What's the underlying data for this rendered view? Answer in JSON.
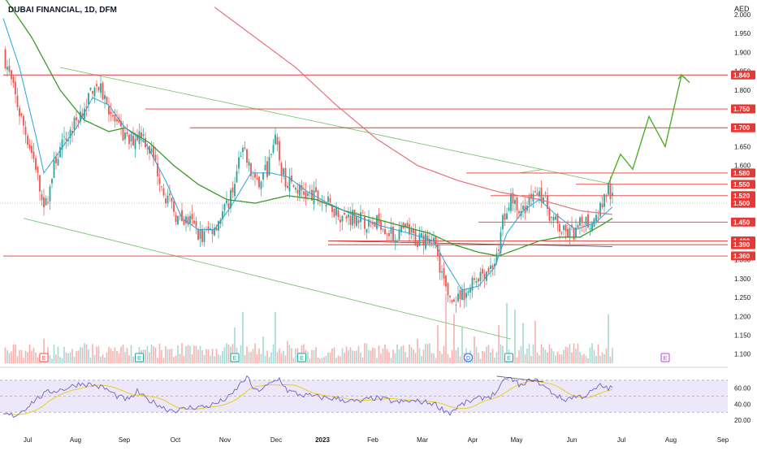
{
  "header": {
    "title": "DUBAI FINANCIAL, 1D, DFM",
    "currency": "AED"
  },
  "colors": {
    "up": "#26a69a",
    "down": "#ef5350",
    "ma_fast": "#2aa3d8",
    "ma_mid": "#3a9a2a",
    "ma_slow": "#e8707a",
    "level": "#e53935",
    "trend": "#7cc576",
    "projection": "#4caf28",
    "rsi": "#6c5fc7",
    "rsi_signal": "#e6d020",
    "rsi_band": "#ede7fa"
  },
  "chart_data": {
    "type": "candlestick",
    "title": "DUBAI FINANCIAL, 1D, DFM",
    "y_unit": "AED",
    "ylim": [
      1.08,
      2.0
    ],
    "y_ticks": [
      "2.000",
      "1.950",
      "1.900",
      "1.850",
      "1.800",
      "1.750",
      "1.700",
      "1.650",
      "1.600",
      "1.550",
      "1.500",
      "1.450",
      "1.400",
      "1.350",
      "1.300",
      "1.250",
      "1.200",
      "1.150",
      "1.100"
    ],
    "x_ticks": [
      "Jul",
      "Aug",
      "Sep",
      "Oct",
      "Nov",
      "Dec",
      "2023",
      "Feb",
      "Mar",
      "Apr",
      "May",
      "Jun",
      "Jul",
      "Aug",
      "Sep"
    ],
    "levels": [
      {
        "value": 1.84,
        "label": "1.840"
      },
      {
        "value": 1.75,
        "label": "1.750"
      },
      {
        "value": 1.7,
        "label": "1.700"
      },
      {
        "value": 1.58,
        "label": "1.580"
      },
      {
        "value": 1.55,
        "label": "1.550"
      },
      {
        "value": 1.52,
        "label": "1.520"
      },
      {
        "value": 1.45,
        "label": "1.450"
      },
      {
        "value": 1.4,
        "label": "1.400"
      },
      {
        "value": 1.39,
        "label": "1.390"
      },
      {
        "value": 1.36,
        "label": "1.360"
      }
    ],
    "last_price": {
      "value": 1.5,
      "label": "1.500"
    },
    "close_anchors": [
      [
        0,
        1.9
      ],
      [
        8,
        1.74
      ],
      [
        16,
        1.6
      ],
      [
        20,
        1.47
      ],
      [
        26,
        1.62
      ],
      [
        34,
        1.7
      ],
      [
        40,
        1.76
      ],
      [
        45,
        1.82
      ],
      [
        50,
        1.78
      ],
      [
        56,
        1.7
      ],
      [
        62,
        1.66
      ],
      [
        68,
        1.69
      ],
      [
        74,
        1.62
      ],
      [
        80,
        1.52
      ],
      [
        86,
        1.46
      ],
      [
        92,
        1.45
      ],
      [
        98,
        1.41
      ],
      [
        104,
        1.44
      ],
      [
        110,
        1.49
      ],
      [
        114,
        1.56
      ],
      [
        118,
        1.64
      ],
      [
        124,
        1.55
      ],
      [
        130,
        1.59
      ],
      [
        134,
        1.66
      ],
      [
        138,
        1.57
      ],
      [
        144,
        1.54
      ],
      [
        150,
        1.52
      ],
      [
        156,
        1.51
      ],
      [
        162,
        1.49
      ],
      [
        168,
        1.46
      ],
      [
        174,
        1.47
      ],
      [
        180,
        1.44
      ],
      [
        186,
        1.45
      ],
      [
        192,
        1.41
      ],
      [
        198,
        1.43
      ],
      [
        204,
        1.4
      ],
      [
        210,
        1.42
      ],
      [
        214,
        1.36
      ],
      [
        218,
        1.27
      ],
      [
        222,
        1.23
      ],
      [
        228,
        1.26
      ],
      [
        234,
        1.31
      ],
      [
        240,
        1.33
      ],
      [
        244,
        1.36
      ],
      [
        246,
        1.46
      ],
      [
        250,
        1.52
      ],
      [
        254,
        1.46
      ],
      [
        258,
        1.5
      ],
      [
        262,
        1.55
      ],
      [
        266,
        1.52
      ],
      [
        270,
        1.46
      ],
      [
        276,
        1.42
      ],
      [
        282,
        1.42
      ],
      [
        286,
        1.46
      ],
      [
        290,
        1.44
      ],
      [
        294,
        1.49
      ],
      [
        298,
        1.54
      ],
      [
        300,
        1.51
      ]
    ],
    "ma_anchors": {
      "ma_fast": [
        [
          0,
          1.99
        ],
        [
          8,
          1.86
        ],
        [
          16,
          1.68
        ],
        [
          20,
          1.58
        ],
        [
          28,
          1.64
        ],
        [
          36,
          1.7
        ],
        [
          44,
          1.78
        ],
        [
          52,
          1.76
        ],
        [
          60,
          1.7
        ],
        [
          70,
          1.66
        ],
        [
          80,
          1.56
        ],
        [
          88,
          1.46
        ],
        [
          96,
          1.43
        ],
        [
          104,
          1.43
        ],
        [
          112,
          1.49
        ],
        [
          122,
          1.58
        ],
        [
          132,
          1.58
        ],
        [
          140,
          1.57
        ],
        [
          150,
          1.53
        ],
        [
          160,
          1.5
        ],
        [
          172,
          1.47
        ],
        [
          186,
          1.44
        ],
        [
          200,
          1.42
        ],
        [
          212,
          1.4
        ],
        [
          218,
          1.34
        ],
        [
          226,
          1.27
        ],
        [
          234,
          1.28
        ],
        [
          242,
          1.33
        ],
        [
          248,
          1.42
        ],
        [
          256,
          1.48
        ],
        [
          264,
          1.51
        ],
        [
          272,
          1.47
        ],
        [
          282,
          1.43
        ],
        [
          292,
          1.45
        ],
        [
          300,
          1.49
        ]
      ],
      "ma_mid": [
        [
          0,
          2.05
        ],
        [
          14,
          1.94
        ],
        [
          28,
          1.8
        ],
        [
          40,
          1.72
        ],
        [
          52,
          1.69
        ],
        [
          60,
          1.7
        ],
        [
          72,
          1.66
        ],
        [
          84,
          1.6
        ],
        [
          96,
          1.55
        ],
        [
          110,
          1.51
        ],
        [
          124,
          1.5
        ],
        [
          140,
          1.52
        ],
        [
          154,
          1.51
        ],
        [
          168,
          1.48
        ],
        [
          182,
          1.46
        ],
        [
          196,
          1.44
        ],
        [
          210,
          1.42
        ],
        [
          222,
          1.39
        ],
        [
          234,
          1.37
        ],
        [
          244,
          1.36
        ],
        [
          254,
          1.38
        ],
        [
          264,
          1.4
        ],
        [
          274,
          1.41
        ],
        [
          284,
          1.41
        ],
        [
          294,
          1.44
        ],
        [
          300,
          1.46
        ]
      ],
      "ma_slow": [
        [
          104,
          2.02
        ],
        [
          124,
          1.94
        ],
        [
          144,
          1.86
        ],
        [
          164,
          1.76
        ],
        [
          184,
          1.67
        ],
        [
          204,
          1.6
        ],
        [
          224,
          1.56
        ],
        [
          244,
          1.53
        ],
        [
          264,
          1.51
        ],
        [
          284,
          1.48
        ],
        [
          300,
          1.47
        ]
      ]
    },
    "volume_spikes": [
      [
        20,
        0.55
      ],
      [
        40,
        0.45
      ],
      [
        86,
        0.4
      ],
      [
        114,
        0.8
      ],
      [
        118,
        1.15
      ],
      [
        128,
        0.6
      ],
      [
        134,
        1.15
      ],
      [
        140,
        0.5
      ],
      [
        178,
        0.45
      ],
      [
        204,
        0.55
      ],
      [
        214,
        0.85
      ],
      [
        218,
        1.55
      ],
      [
        222,
        1.1
      ],
      [
        226,
        0.8
      ],
      [
        232,
        0.6
      ],
      [
        244,
        0.85
      ],
      [
        248,
        1.35
      ],
      [
        252,
        1.2
      ],
      [
        256,
        0.9
      ],
      [
        262,
        0.95
      ],
      [
        290,
        0.45
      ],
      [
        298,
        1.1
      ]
    ],
    "rsi": {
      "ylim": [
        15,
        80
      ],
      "y_ticks": [
        "60.00",
        "40.00",
        "20.00"
      ],
      "levels": [
        70,
        50,
        30
      ],
      "anchors": [
        [
          0,
          27
        ],
        [
          6,
          26
        ],
        [
          10,
          33
        ],
        [
          16,
          46
        ],
        [
          22,
          55
        ],
        [
          30,
          59
        ],
        [
          38,
          66
        ],
        [
          44,
          64
        ],
        [
          50,
          60
        ],
        [
          56,
          50
        ],
        [
          62,
          45
        ],
        [
          66,
          56
        ],
        [
          70,
          47
        ],
        [
          76,
          40
        ],
        [
          80,
          34
        ],
        [
          86,
          32
        ],
        [
          92,
          36
        ],
        [
          100,
          37
        ],
        [
          106,
          42
        ],
        [
          112,
          50
        ],
        [
          116,
          63
        ],
        [
          120,
          74
        ],
        [
          124,
          56
        ],
        [
          128,
          60
        ],
        [
          132,
          66
        ],
        [
          136,
          72
        ],
        [
          140,
          57
        ],
        [
          146,
          52
        ],
        [
          152,
          50
        ],
        [
          158,
          48
        ],
        [
          164,
          47
        ],
        [
          170,
          44
        ],
        [
          176,
          43
        ],
        [
          182,
          48
        ],
        [
          188,
          46
        ],
        [
          194,
          42
        ],
        [
          200,
          44
        ],
        [
          206,
          43
        ],
        [
          212,
          41
        ],
        [
          216,
          34
        ],
        [
          220,
          29
        ],
        [
          224,
          37
        ],
        [
          228,
          42
        ],
        [
          234,
          47
        ],
        [
          240,
          50
        ],
        [
          244,
          58
        ],
        [
          248,
          74
        ],
        [
          252,
          68
        ],
        [
          256,
          62
        ],
        [
          260,
          72
        ],
        [
          264,
          67
        ],
        [
          270,
          55
        ],
        [
          276,
          45
        ],
        [
          280,
          49
        ],
        [
          286,
          50
        ],
        [
          290,
          56
        ],
        [
          294,
          63
        ],
        [
          298,
          60
        ],
        [
          300,
          60
        ]
      ]
    },
    "events": [
      {
        "label": "E",
        "at": 20
      },
      {
        "label": "E",
        "at": 67
      },
      {
        "label": "E",
        "at": 114
      },
      {
        "label": "E",
        "at": 147
      },
      {
        "label": "D",
        "at": 229
      },
      {
        "label": "E",
        "at": 249
      },
      {
        "label": "E",
        "at": 326
      }
    ],
    "trendlines": [
      {
        "from": [
          28,
          1.86
        ],
        "to": [
          300,
          1.55
        ]
      },
      {
        "from": [
          10,
          1.46
        ],
        "to": [
          250,
          1.14
        ]
      },
      {
        "from": [
          254,
          1.58
        ],
        "to": [
          266,
          1.59
        ]
      }
    ],
    "projection": [
      [
        298,
        1.55
      ],
      [
        304,
        1.63
      ],
      [
        310,
        1.59
      ],
      [
        318,
        1.73
      ],
      [
        326,
        1.65
      ],
      [
        334,
        1.84
      ],
      [
        338,
        1.82
      ]
    ]
  }
}
